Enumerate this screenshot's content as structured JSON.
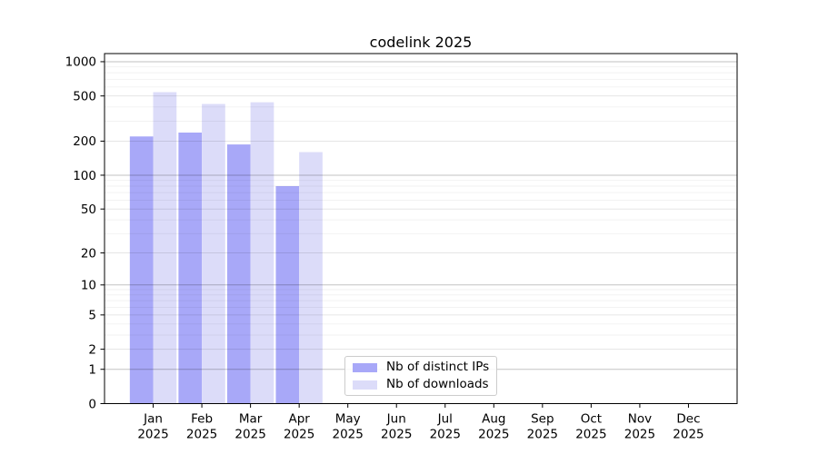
{
  "chart_data": {
    "type": "bar",
    "scale": "symlog",
    "title": "codelink 2025",
    "year": "2025",
    "months": [
      "Jan",
      "Feb",
      "Mar",
      "Apr",
      "May",
      "Jun",
      "Jul",
      "Aug",
      "Sep",
      "Oct",
      "Nov",
      "Dec"
    ],
    "yticks": [
      0,
      1,
      2,
      5,
      10,
      20,
      50,
      100,
      200,
      500,
      1000
    ],
    "ylim": [
      0,
      1180
    ],
    "grid": true,
    "legend_position": "lower center",
    "series": [
      {
        "name": "Nb of distinct IPs",
        "color": "#a8a8f8",
        "values": [
          220,
          238,
          187,
          80,
          null,
          null,
          null,
          null,
          null,
          null,
          null,
          null
        ]
      },
      {
        "name": "Nb of downloads",
        "color": "#dcdcf9",
        "values": [
          540,
          425,
          440,
          160,
          null,
          null,
          null,
          null,
          null,
          null,
          null,
          null
        ]
      }
    ]
  }
}
